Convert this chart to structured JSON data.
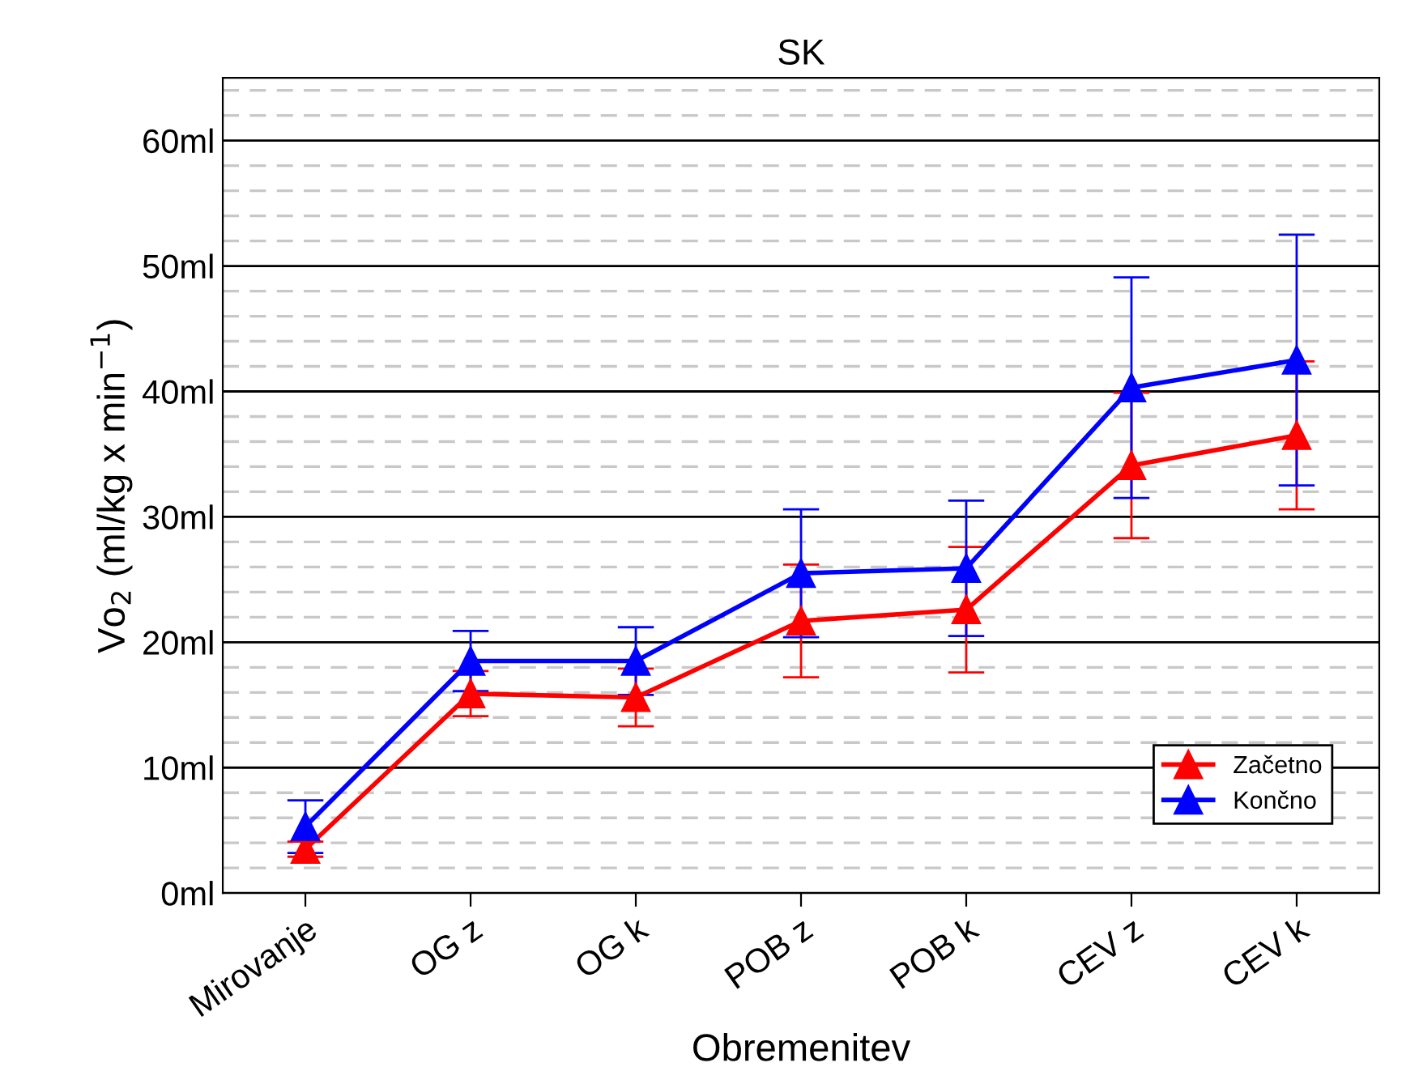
{
  "chart_data": {
    "type": "line",
    "title": "SK",
    "xlabel": "Obremenitev",
    "ylabel": "Vo$_{2}$ (ml/kg x min$^{−1}$)",
    "categories": [
      "Mirovanje",
      "OG z",
      "OG k",
      "POB z",
      "POB k",
      "CEV z",
      "CEV k"
    ],
    "series": [
      {
        "name": "Začetno",
        "color": "#ff0000",
        "values": [
          3.5,
          15.9,
          15.6,
          21.7,
          22.6,
          34.1,
          36.5
        ],
        "errors": [
          0.6,
          1.8,
          2.3,
          4.5,
          5.0,
          5.8,
          5.9
        ]
      },
      {
        "name": "Končno",
        "color": "#0000ff",
        "values": [
          5.3,
          18.5,
          18.5,
          25.5,
          25.9,
          40.3,
          42.5
        ],
        "errors": [
          2.1,
          2.4,
          2.7,
          5.1,
          5.4,
          8.8,
          10.0
        ]
      }
    ],
    "ylim": [
      0,
      65
    ],
    "yticks": [
      {
        "value": 0,
        "label": "0ml"
      },
      {
        "value": 2,
        "label": null
      },
      {
        "value": 4,
        "label": null
      },
      {
        "value": 6,
        "label": null
      },
      {
        "value": 8,
        "label": null
      },
      {
        "value": 10,
        "label": "10ml"
      },
      {
        "value": 12,
        "label": null
      },
      {
        "value": 14,
        "label": null
      },
      {
        "value": 16,
        "label": null
      },
      {
        "value": 18,
        "label": null
      },
      {
        "value": 20,
        "label": "20ml"
      },
      {
        "value": 22,
        "label": null
      },
      {
        "value": 24,
        "label": null
      },
      {
        "value": 26,
        "label": null
      },
      {
        "value": 28,
        "label": null
      },
      {
        "value": 30,
        "label": "30ml"
      },
      {
        "value": 32,
        "label": null
      },
      {
        "value": 34,
        "label": null
      },
      {
        "value": 36,
        "label": null
      },
      {
        "value": 38,
        "label": null
      },
      {
        "value": 40,
        "label": "40ml"
      },
      {
        "value": 42,
        "label": null
      },
      {
        "value": 44,
        "label": null
      },
      {
        "value": 46,
        "label": null
      },
      {
        "value": 48,
        "label": null
      },
      {
        "value": 50,
        "label": "50ml"
      },
      {
        "value": 52,
        "label": null
      },
      {
        "value": 54,
        "label": null
      },
      {
        "value": 56,
        "label": null
      },
      {
        "value": 58,
        "label": null
      },
      {
        "value": 60,
        "label": "60ml"
      },
      {
        "value": 62,
        "label": null
      },
      {
        "value": 64,
        "label": null
      }
    ],
    "grid": "y",
    "legend": "bottom right",
    "marker": "triangle",
    "line_style": "solid"
  }
}
